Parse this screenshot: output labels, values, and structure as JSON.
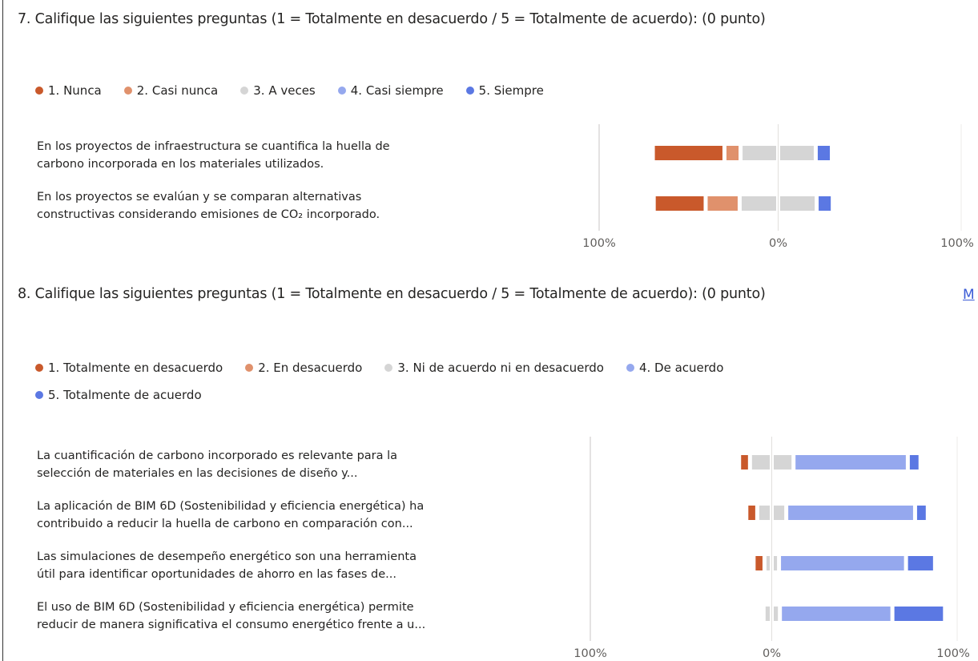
{
  "questions": [
    {
      "heading": "7. Califique las siguientes preguntas (1 = Totalmente en desacuerdo / 5 = Totalmente de acuerdo): (0 punto)",
      "chart_data": {
        "type": "bar",
        "stacking": "diverging",
        "categories": [
          "En los proyectos de infraestructura se cuantifica la huella de\ncarbono incorporada en los materiales utilizados.",
          "En los proyectos se evalúan y se comparan alternativas\nconstructivas considerando emisiones de CO₂ incorporado."
        ],
        "series": [
          {
            "name": "1. Nunca",
            "color": "#c9592b",
            "values": [
              40,
              29
            ]
          },
          {
            "name": "2. Casi nunca",
            "color": "#e0916c",
            "values": [
              9,
              19
            ]
          },
          {
            "name": "3. A veces",
            "color": "#d5d5d5",
            "values": [
              42,
              43
            ]
          },
          {
            "name": "4. Casi siempre",
            "color": "#95a8ee",
            "values": [
              0,
              0
            ]
          },
          {
            "name": "5. Siempre",
            "color": "#5b78e3",
            "values": [
              9,
              9
            ]
          }
        ],
        "xlim": [
          -100,
          100
        ],
        "xticks": [
          {
            "value": -100,
            "label": "100%"
          },
          {
            "value": 0,
            "label": "0%"
          },
          {
            "value": 100,
            "label": "100%"
          }
        ],
        "grid": true
      }
    },
    {
      "heading": "8. Califique las siguientes preguntas (1 = Totalmente en desacuerdo / 5 = Totalmente de acuerdo): (0 punto)",
      "chart_data": {
        "type": "bar",
        "stacking": "diverging",
        "categories": [
          "La cuantificación de carbono incorporado es relevante para la\nselección de materiales en las decisiones de diseño y...",
          "La aplicación de BIM 6D (Sostenibilidad y eficiencia energética) ha\ncontribuido a reducir la huella de carbono en comparación con...",
          "Las simulaciones de desempeño energético son una herramienta\nútil para identificar oportunidades de ahorro en las fases de...",
          "El uso de BIM 6D (Sostenibilidad y eficiencia energética) permite\nreducir de manera significativa el consumo energético frente a u..."
        ],
        "series": [
          {
            "name": "1. Totalmente en desacuerdo",
            "color": "#c9592b",
            "values": [
              6,
              6,
              6,
              0
            ]
          },
          {
            "name": "2. En desacuerdo",
            "color": "#e0916c",
            "values": [
              0,
              0,
              0,
              0
            ]
          },
          {
            "name": "3. Ni de acuerdo ni en desacuerdo",
            "color": "#d5d5d5",
            "values": [
              24,
              16,
              8,
              9
            ]
          },
          {
            "name": "4. De acuerdo",
            "color": "#95a8ee",
            "values": [
              63,
              71,
              70,
              62
            ]
          },
          {
            "name": "5. Totalmente de acuerdo",
            "color": "#5b78e3",
            "values": [
              7,
              7,
              16,
              29
            ]
          }
        ],
        "xlim": [
          -100,
          100
        ],
        "xticks": [
          {
            "value": -100,
            "label": "100%"
          },
          {
            "value": 0,
            "label": "0%"
          },
          {
            "value": 100,
            "label": "100%"
          }
        ],
        "grid": true
      }
    }
  ],
  "link": "M"
}
